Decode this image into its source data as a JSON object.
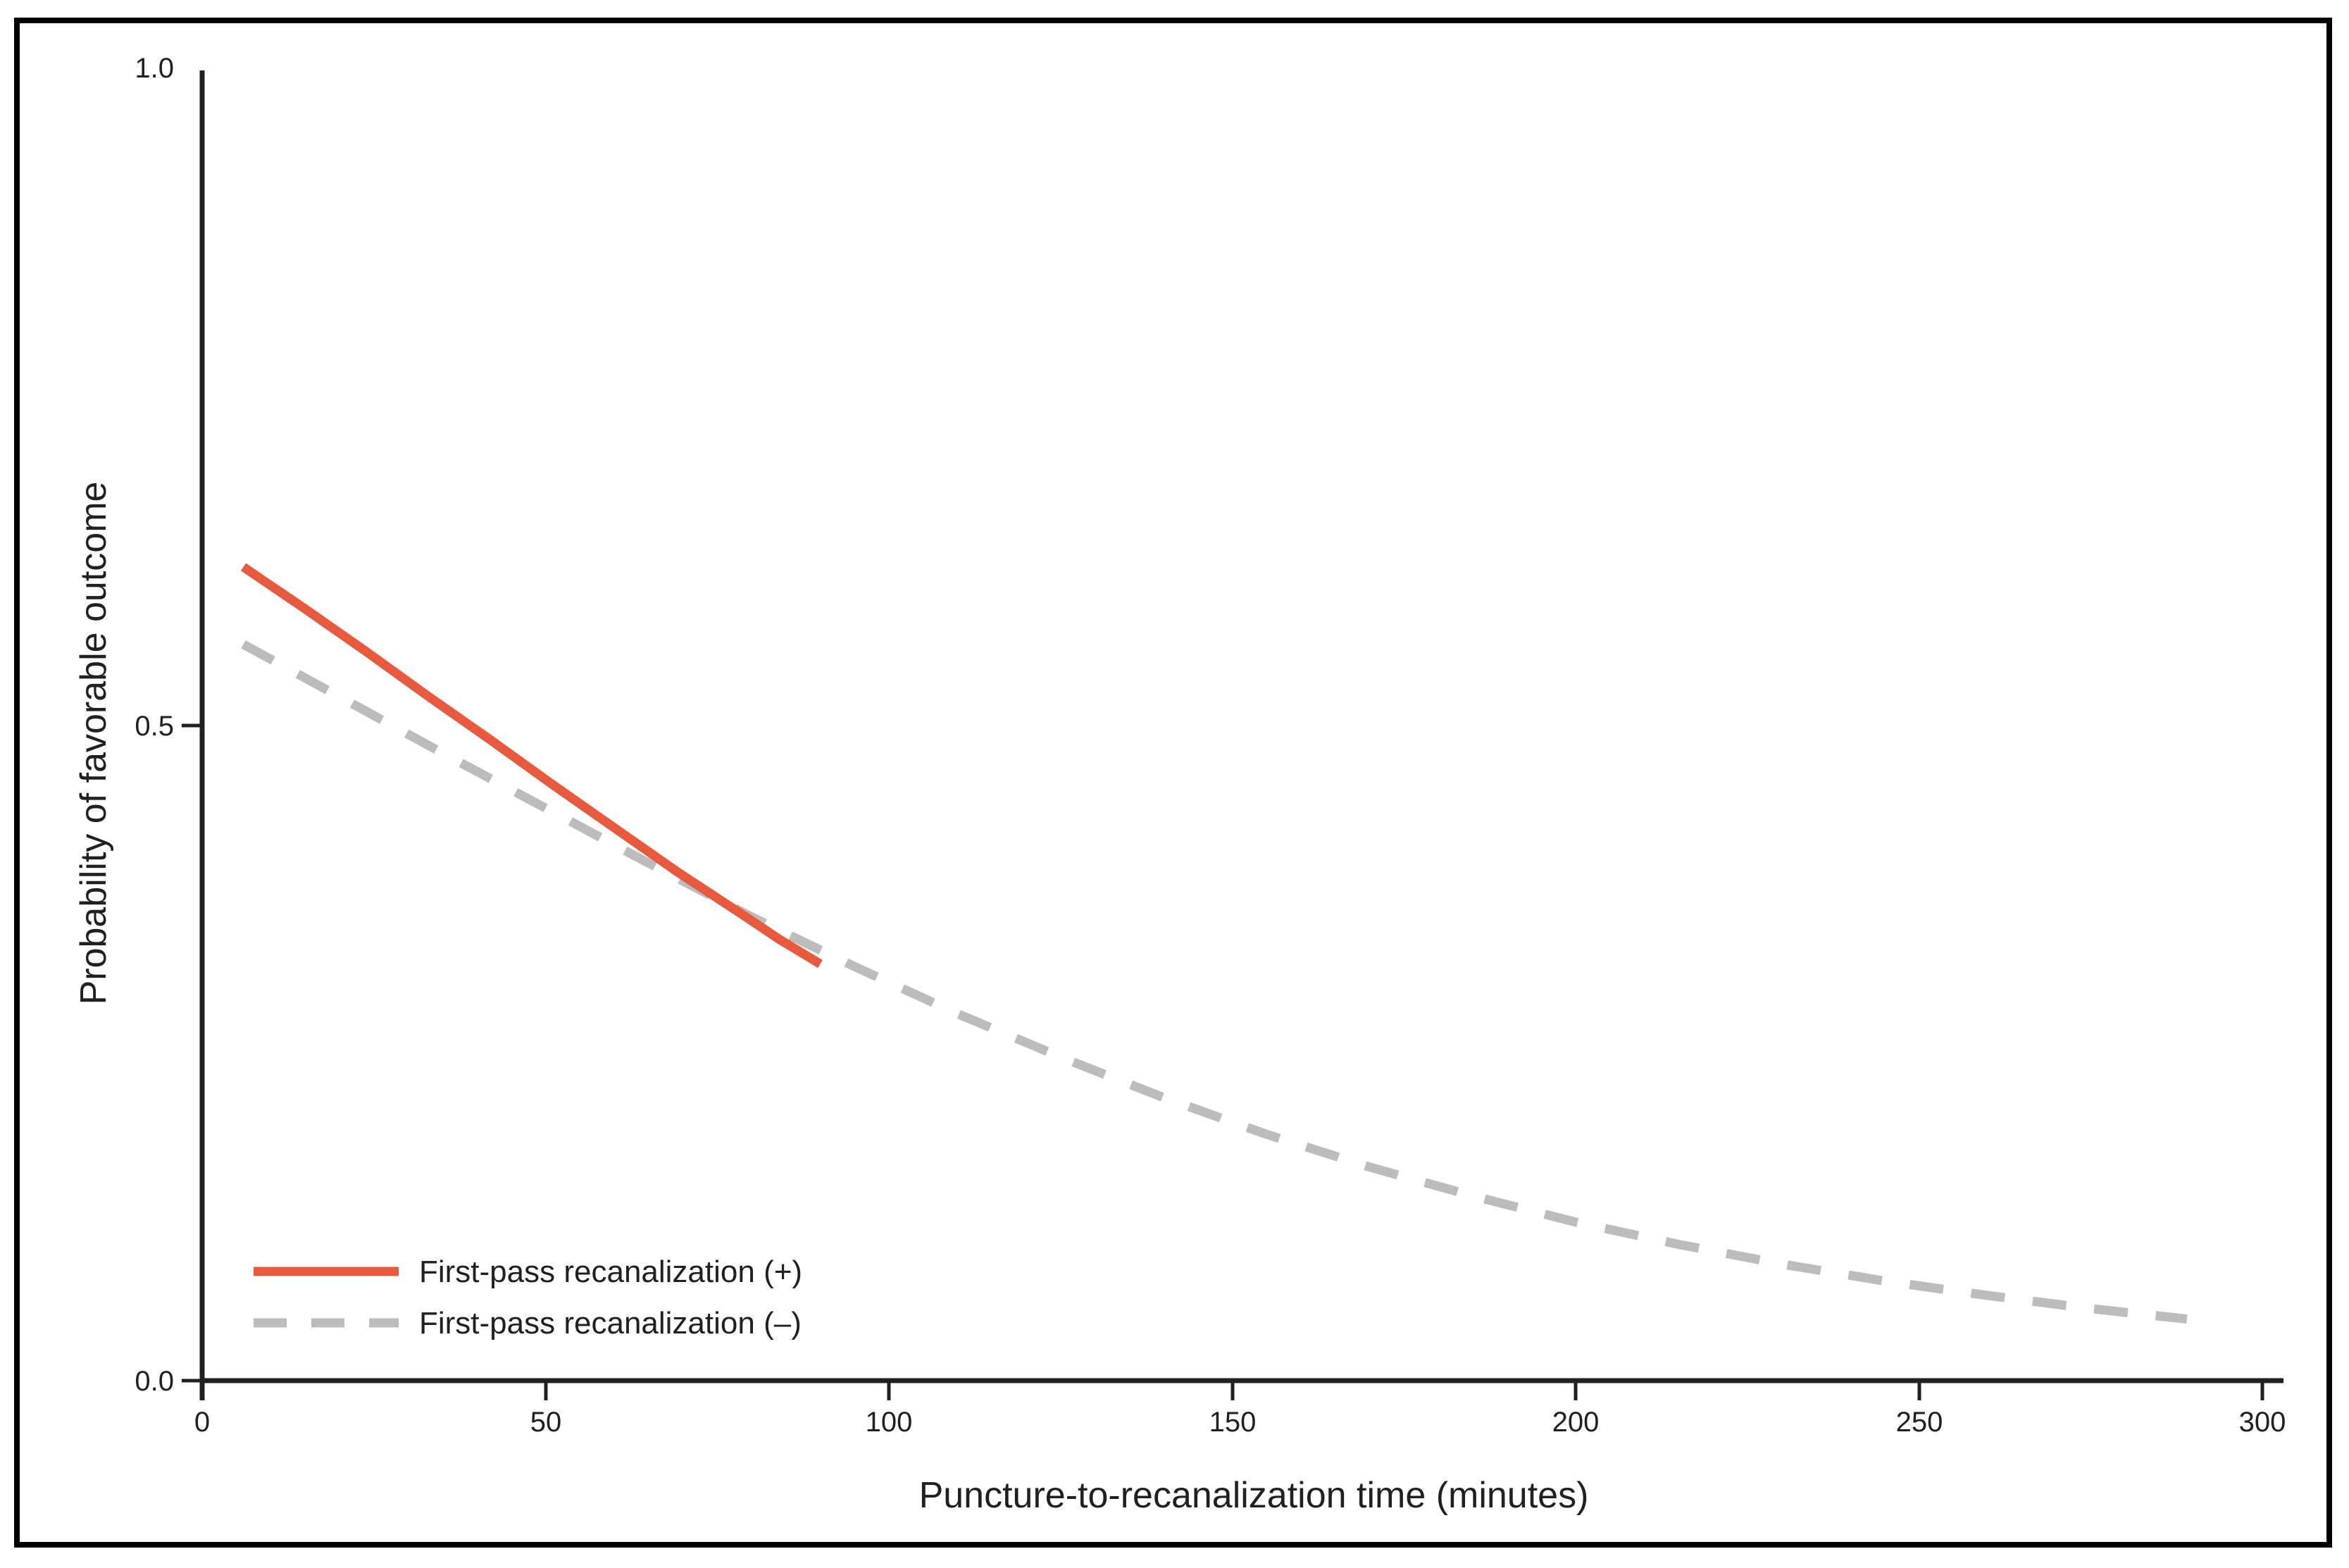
{
  "chart_data": {
    "type": "line",
    "title": "",
    "xlabel": "Puncture-to-recanalization time (minutes)",
    "ylabel": "Probability of favorable outcome",
    "xlim": [
      0,
      300
    ],
    "ylim": [
      0.0,
      1.0
    ],
    "x_ticks": [
      0,
      50,
      100,
      150,
      200,
      250,
      300
    ],
    "x_ticklabels": [
      "0",
      "50",
      "100",
      "150",
      "200",
      "250",
      "300"
    ],
    "y_ticks": [
      0.0,
      0.5,
      1.0
    ],
    "y_ticklabels": [
      "0.0",
      "0.5",
      "1.0"
    ],
    "grid": false,
    "legend_position": "inside-bottom-left",
    "colors": {
      "solid_line": "#e85a3e",
      "dashed_line": "#bcbcbc",
      "axis_ink": "#231f20",
      "frame": "#000000",
      "background": "#ffffff"
    },
    "series": [
      {
        "name": "First-pass recanalization (+)",
        "style": "solid",
        "color": "#e85a3e",
        "points": [
          [
            6,
            0.621
          ],
          [
            15,
            0.589
          ],
          [
            24,
            0.556
          ],
          [
            33,
            0.522
          ],
          [
            42,
            0.489
          ],
          [
            51,
            0.455
          ],
          [
            60,
            0.422
          ],
          [
            69,
            0.389
          ],
          [
            78,
            0.358
          ],
          [
            84,
            0.337
          ],
          [
            90,
            0.318
          ]
        ]
      },
      {
        "name": "First-pass recanalization (–)",
        "style": "dashed",
        "color": "#bcbcbc",
        "points": [
          [
            6,
            0.562
          ],
          [
            20,
            0.522
          ],
          [
            35,
            0.479
          ],
          [
            50,
            0.437
          ],
          [
            65,
            0.395
          ],
          [
            80,
            0.354
          ],
          [
            95,
            0.316
          ],
          [
            110,
            0.28
          ],
          [
            125,
            0.247
          ],
          [
            140,
            0.216
          ],
          [
            155,
            0.188
          ],
          [
            170,
            0.163
          ],
          [
            185,
            0.141
          ],
          [
            200,
            0.121
          ],
          [
            215,
            0.104
          ],
          [
            230,
            0.089
          ],
          [
            245,
            0.076
          ],
          [
            260,
            0.065
          ],
          [
            275,
            0.055
          ],
          [
            289,
            0.047
          ]
        ]
      }
    ]
  }
}
